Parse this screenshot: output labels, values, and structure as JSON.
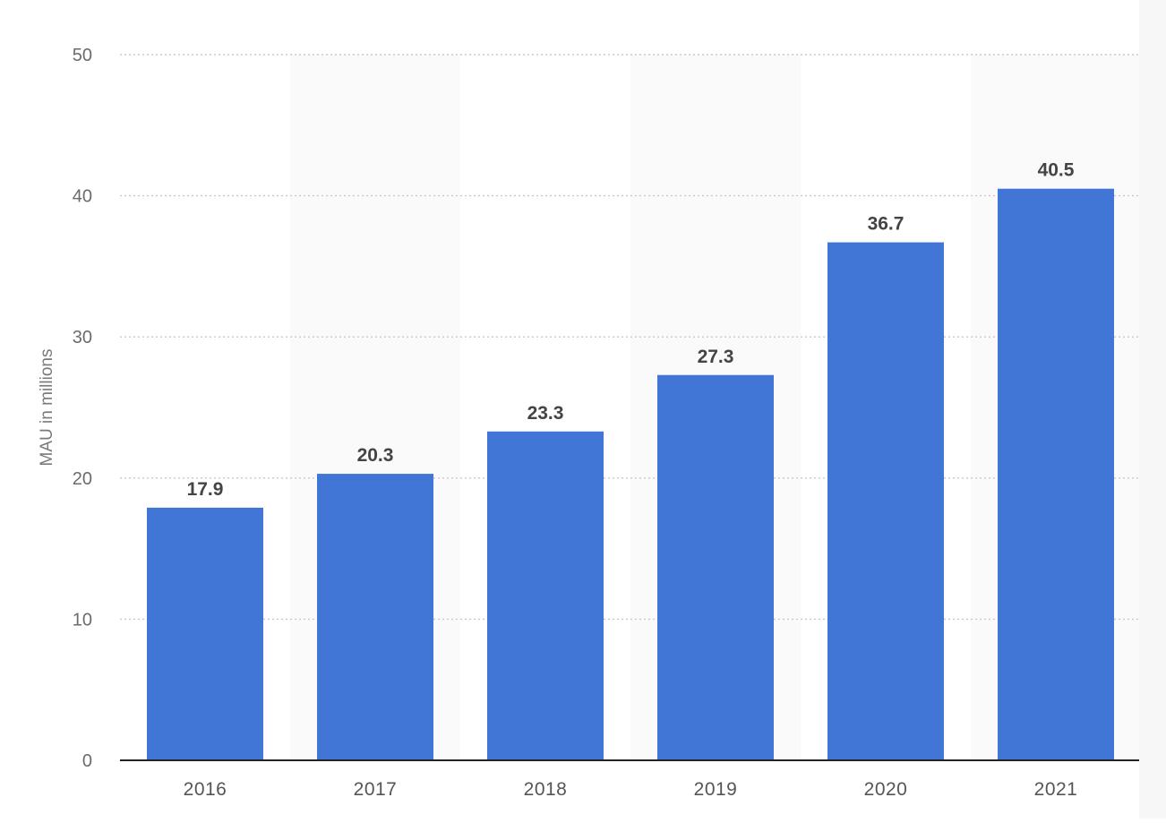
{
  "chart_data": {
    "type": "bar",
    "categories": [
      "2016",
      "2017",
      "2018",
      "2019",
      "2020",
      "2021"
    ],
    "values": [
      17.9,
      20.3,
      23.3,
      27.3,
      36.7,
      40.5
    ],
    "data_labels": [
      "17.9",
      "20.3",
      "23.3",
      "27.3",
      "36.7",
      "40.5"
    ],
    "ylabel": "MAU in millions",
    "xlabel": "",
    "ylim": [
      0,
      50
    ],
    "yticks": [
      "0",
      "10",
      "20",
      "30",
      "40",
      "50"
    ],
    "grid": "horizontal-dotted",
    "alternating_band_shading": true,
    "bar_color": "#4176d6",
    "band_color": "#fafafa",
    "grid_color": "#c8c8c8",
    "axis_color": "#222222"
  }
}
